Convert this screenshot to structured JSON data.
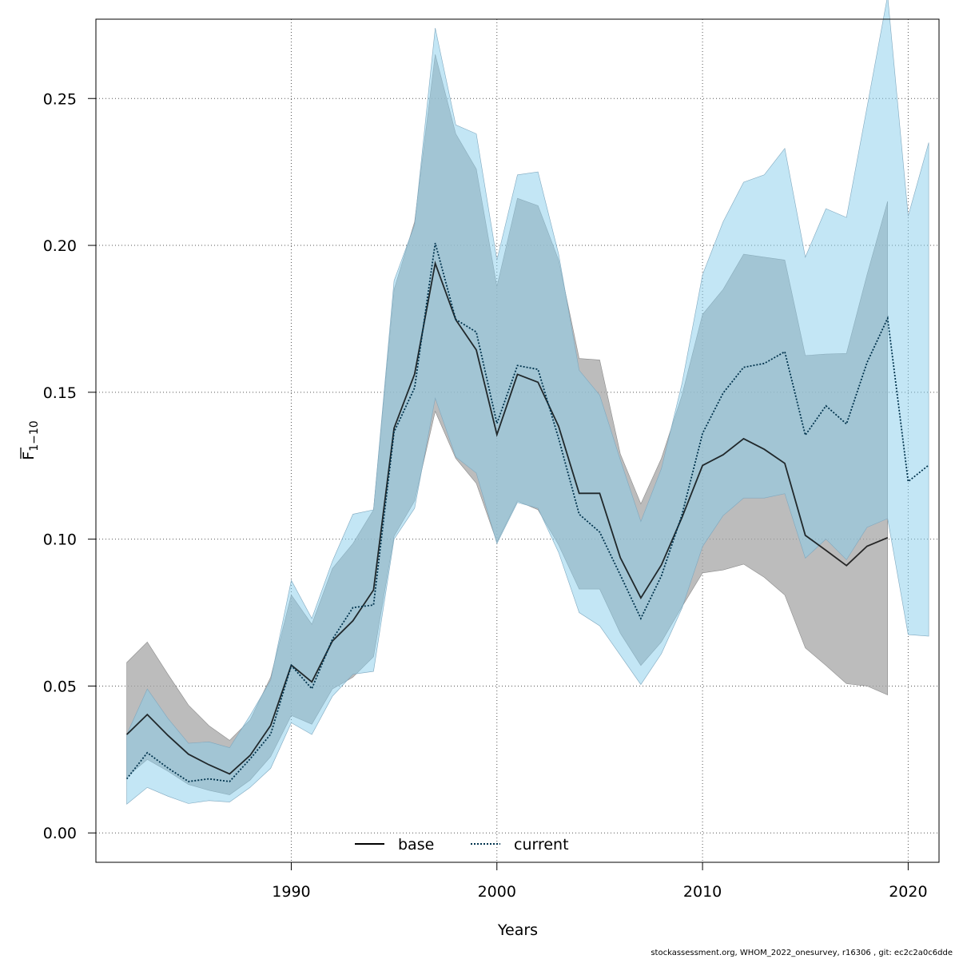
{
  "chart_data": {
    "type": "line",
    "title": "",
    "xlabel": "Years",
    "ylabel_main": "F",
    "ylabel_sub": "1−10",
    "xlim": [
      1980.5,
      2021.5
    ],
    "ylim": [
      -0.01,
      0.277
    ],
    "x_ticks": [
      1990,
      2000,
      2010,
      2020
    ],
    "y_ticks": [
      0.0,
      0.05,
      0.1,
      0.15,
      0.2,
      0.25
    ],
    "y_tick_labels": [
      "0.00",
      "0.05",
      "0.10",
      "0.15",
      "0.20",
      "0.25"
    ],
    "grid": true,
    "legend_placement": "bottom-center",
    "colors": {
      "base_line": "#000000",
      "base_band": "#a6a6a6",
      "current_line": "#00334d",
      "current_band": "#87ceeb"
    },
    "series": [
      {
        "name": "base",
        "style": "solid",
        "x": [
          1982,
          1983,
          1984,
          1985,
          1986,
          1987,
          1988,
          1989,
          1990,
          1991,
          1992,
          1993,
          1994,
          1995,
          1996,
          1997,
          1998,
          1999,
          2000,
          2001,
          2002,
          2003,
          2004,
          2005,
          2006,
          2007,
          2008,
          2009,
          2010,
          2011,
          2012,
          2013,
          2014,
          2015,
          2016,
          2017,
          2018,
          2019
        ],
        "values": [
          0.0335,
          0.0403,
          0.0332,
          0.0268,
          0.0232,
          0.0201,
          0.0264,
          0.0366,
          0.0571,
          0.0514,
          0.0653,
          0.0722,
          0.0827,
          0.1378,
          0.1562,
          0.1939,
          0.1747,
          0.1644,
          0.1356,
          0.1561,
          0.1534,
          0.1384,
          0.1156,
          0.1156,
          0.0937,
          0.08,
          0.0912,
          0.1074,
          0.1251,
          0.1287,
          0.1342,
          0.1306,
          0.1258,
          0.1013,
          0.0962,
          0.091,
          0.0976,
          0.1005
        ],
        "lower": [
          0.019,
          0.025,
          0.021,
          0.0165,
          0.0145,
          0.013,
          0.018,
          0.026,
          0.04,
          0.037,
          0.049,
          0.053,
          0.06,
          0.101,
          0.113,
          0.1435,
          0.1275,
          0.119,
          0.099,
          0.113,
          0.11,
          0.098,
          0.083,
          0.083,
          0.068,
          0.057,
          0.065,
          0.077,
          0.0885,
          0.0895,
          0.0915,
          0.087,
          0.081,
          0.063,
          0.057,
          0.0508,
          0.05,
          0.047
        ],
        "upper": [
          0.058,
          0.065,
          0.054,
          0.0435,
          0.0365,
          0.0315,
          0.0385,
          0.053,
          0.081,
          0.071,
          0.09,
          0.0985,
          0.11,
          0.185,
          0.208,
          0.265,
          0.238,
          0.226,
          0.186,
          0.216,
          0.2135,
          0.195,
          0.1615,
          0.161,
          0.129,
          0.112,
          0.1275,
          0.149,
          0.1765,
          0.185,
          0.197,
          0.196,
          0.195,
          0.1625,
          0.163,
          0.1632,
          0.19,
          0.215
        ]
      },
      {
        "name": "current",
        "style": "dotted",
        "x": [
          1982,
          1983,
          1984,
          1985,
          1986,
          1987,
          1988,
          1989,
          1990,
          1991,
          1992,
          1993,
          1994,
          1995,
          1996,
          1997,
          1998,
          1999,
          2000,
          2001,
          2002,
          2003,
          2004,
          2005,
          2006,
          2007,
          2008,
          2009,
          2010,
          2011,
          2012,
          2013,
          2014,
          2015,
          2016,
          2017,
          2018,
          2019,
          2020,
          2021
        ],
        "values": [
          0.0184,
          0.0273,
          0.0221,
          0.0175,
          0.0184,
          0.0175,
          0.0252,
          0.0336,
          0.057,
          0.0491,
          0.0659,
          0.0767,
          0.0776,
          0.1365,
          0.1515,
          0.2008,
          0.1748,
          0.1705,
          0.1394,
          0.1591,
          0.1578,
          0.1343,
          0.1085,
          0.1024,
          0.0878,
          0.073,
          0.0875,
          0.1083,
          0.136,
          0.1497,
          0.1585,
          0.1598,
          0.1638,
          0.1354,
          0.1454,
          0.1392,
          0.1601,
          0.1752,
          0.1196,
          0.1252
        ],
        "lower": [
          0.0098,
          0.0155,
          0.0125,
          0.01,
          0.011,
          0.0105,
          0.0155,
          0.022,
          0.0375,
          0.0335,
          0.0465,
          0.054,
          0.055,
          0.1,
          0.1105,
          0.148,
          0.128,
          0.1225,
          0.0985,
          0.1125,
          0.1105,
          0.0955,
          0.075,
          0.0705,
          0.0605,
          0.0505,
          0.061,
          0.0765,
          0.0975,
          0.108,
          0.114,
          0.114,
          0.1155,
          0.0935,
          0.1,
          0.093,
          0.104,
          0.107,
          0.0675,
          0.067
        ],
        "upper": [
          0.0335,
          0.049,
          0.039,
          0.0305,
          0.031,
          0.029,
          0.04,
          0.052,
          0.086,
          0.073,
          0.0925,
          0.1085,
          0.11,
          0.188,
          0.207,
          0.274,
          0.241,
          0.238,
          0.195,
          0.224,
          0.225,
          0.197,
          0.1575,
          0.149,
          0.127,
          0.106,
          0.124,
          0.153,
          0.19,
          0.208,
          0.2215,
          0.224,
          0.233,
          0.196,
          0.2125,
          0.2095,
          0.247,
          0.285,
          0.21,
          0.235
        ]
      }
    ],
    "legend": [
      {
        "label": "base",
        "style": "solid"
      },
      {
        "label": "current",
        "style": "dotted"
      }
    ]
  },
  "footer": "stockassessment.org, WHOM_2022_onesurvey, r16306 , git: ec2c2a0c6dde"
}
